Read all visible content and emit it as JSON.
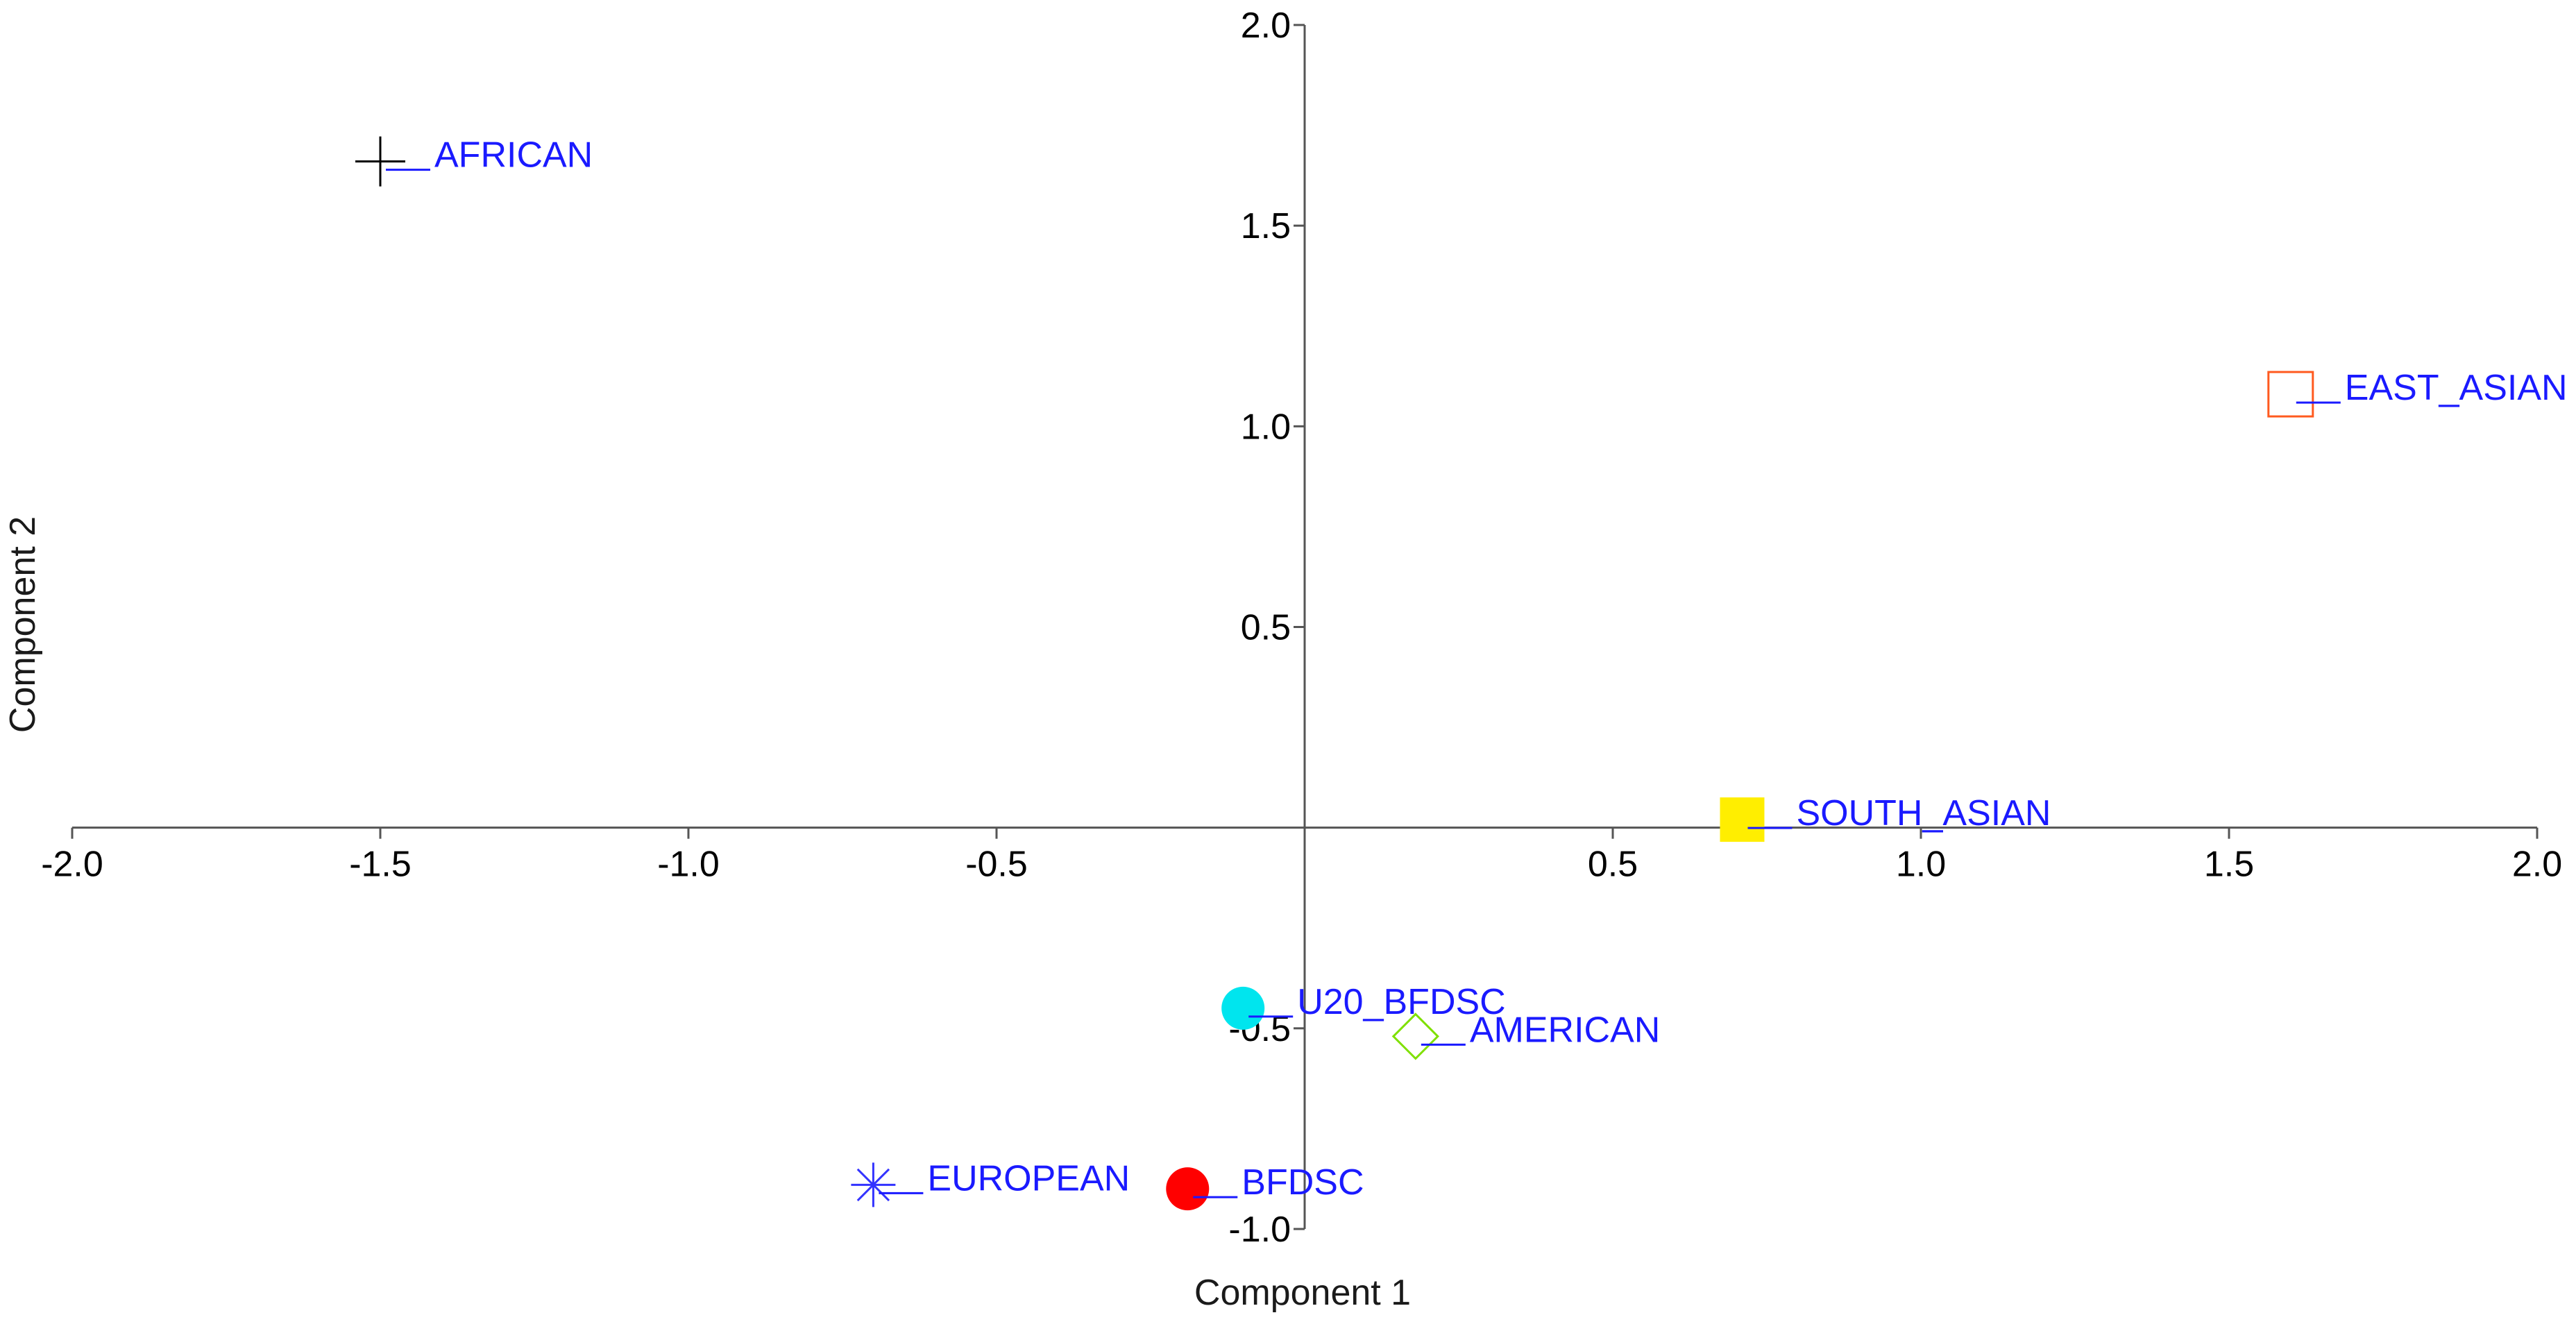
{
  "chart_data": {
    "type": "scatter",
    "title": "",
    "xlabel": "Component 1",
    "ylabel": "Component 2",
    "xlim": [
      -2.0,
      2.0
    ],
    "ylim": [
      -1.0,
      2.0
    ],
    "x_ticks": [
      -2.0,
      -1.5,
      -1.0,
      -0.5,
      0.5,
      1.0,
      1.5,
      2.0
    ],
    "x_tick_labels": [
      "-2.0",
      "-1.5",
      "-1.0",
      "-0.5",
      "0.5",
      "1.0",
      "1.5",
      "2.0"
    ],
    "y_ticks": [
      -1.0,
      -0.5,
      0.5,
      1.0,
      1.5,
      2.0
    ],
    "y_tick_labels": [
      "-1.0",
      "-0.5",
      "0.5",
      "1.0",
      "1.5",
      "2.0"
    ],
    "grid": false,
    "axes_cross_at_origin": true,
    "label_color": "#1a1aff",
    "points": [
      {
        "label": "AFRICAN",
        "x": -1.5,
        "y": 1.66,
        "marker": "plus",
        "color": "#000000"
      },
      {
        "label": "EAST_ASIAN",
        "x": 1.6,
        "y": 1.08,
        "marker": "square-open",
        "color": "#ff5a1f"
      },
      {
        "label": "SOUTH_ASIAN",
        "x": 0.71,
        "y": 0.02,
        "marker": "square-filled",
        "color": "#ffee00"
      },
      {
        "label": "U20_BFDSC",
        "x": -0.1,
        "y": -0.45,
        "marker": "circle-filled",
        "color": "#00e5ee"
      },
      {
        "label": "AMERICAN",
        "x": 0.18,
        "y": -0.52,
        "marker": "diamond-open",
        "color": "#7fe000"
      },
      {
        "label": "EUROPEAN",
        "x": -0.7,
        "y": -0.89,
        "marker": "asterisk",
        "color": "#3333ff"
      },
      {
        "label": "BFDSC",
        "x": -0.19,
        "y": -0.9,
        "marker": "circle-filled",
        "color": "#ff0000"
      }
    ]
  }
}
